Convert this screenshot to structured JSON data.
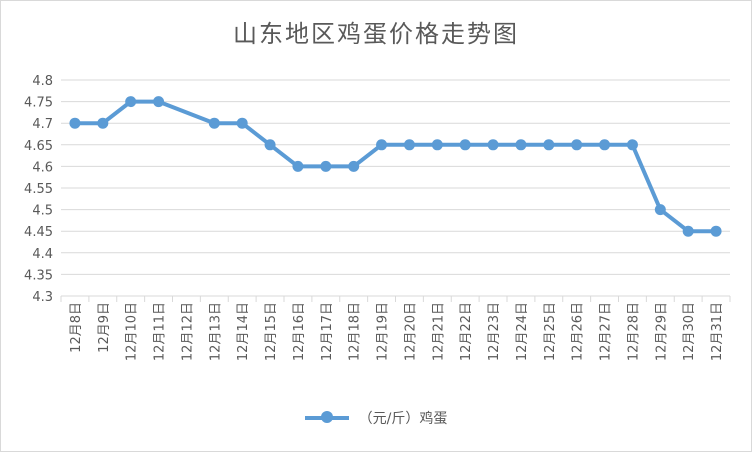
{
  "chart_data": {
    "type": "line",
    "title": "山东地区鸡蛋价格走势图",
    "categories": [
      "12月8日",
      "12月9日",
      "12月10日",
      "12月11日",
      "12月12日",
      "12月13日",
      "12月14日",
      "12月15日",
      "12月16日",
      "12月17日",
      "12月18日",
      "12月19日",
      "12月20日",
      "12月21日",
      "12月22日",
      "12月23日",
      "12月24日",
      "12月25日",
      "12月26日",
      "12月27日",
      "12月28日",
      "12月29日",
      "12月30日",
      "12月31日"
    ],
    "series": [
      {
        "name": "（元/斤）鸡蛋",
        "color": "#5b9bd5",
        "values": [
          4.7,
          4.7,
          4.75,
          4.75,
          null,
          4.7,
          4.7,
          4.65,
          4.6,
          4.6,
          4.6,
          4.65,
          4.65,
          4.65,
          4.65,
          4.65,
          4.65,
          4.65,
          4.65,
          4.65,
          4.65,
          4.5,
          4.45,
          4.45
        ]
      }
    ],
    "ylim": [
      4.3,
      4.8
    ],
    "yticks": [
      "4.3",
      "4.35",
      "4.4",
      "4.45",
      "4.5",
      "4.55",
      "4.6",
      "4.65",
      "4.7",
      "4.75",
      "4.8"
    ],
    "grid": true,
    "legend": "bottom"
  }
}
